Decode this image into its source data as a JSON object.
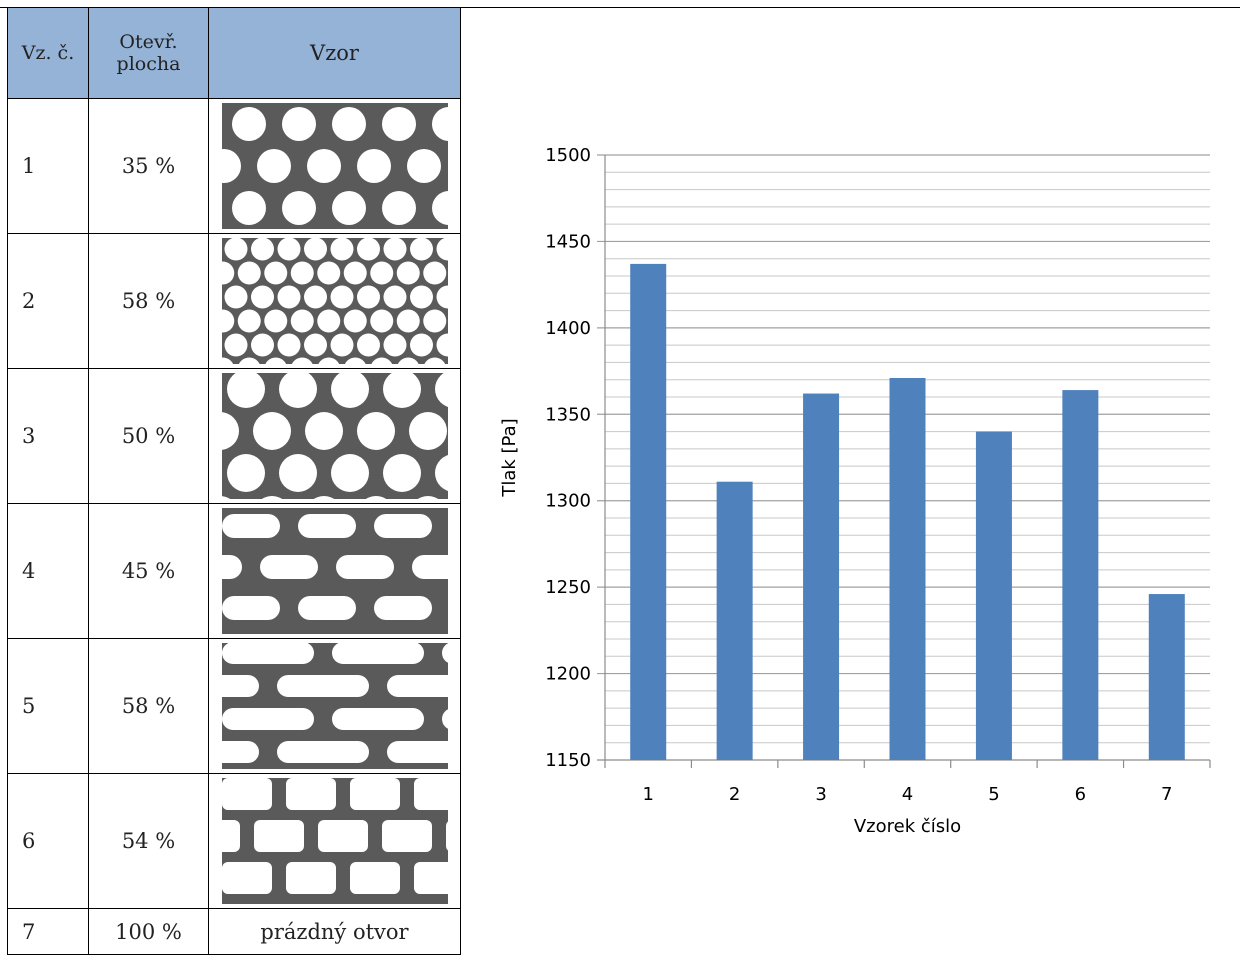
{
  "table": {
    "headers": {
      "number": "Vz. č.",
      "area_line1": "Otevř.",
      "area_line2": "plocha",
      "pattern": "Vzor"
    },
    "rows": [
      {
        "no": "1",
        "open_area": "35 %",
        "pattern": "round-holes-large"
      },
      {
        "no": "2",
        "open_area": "58 %",
        "pattern": "round-holes-small"
      },
      {
        "no": "3",
        "open_area": "50 %",
        "pattern": "round-holes-staggered"
      },
      {
        "no": "4",
        "open_area": "45 %",
        "pattern": "slots-short"
      },
      {
        "no": "5",
        "open_area": "58 %",
        "pattern": "slots-long"
      },
      {
        "no": "6",
        "open_area": "54 %",
        "pattern": "slots-barrel"
      },
      {
        "no": "7",
        "open_area": "100 %",
        "pattern_text": "prázdný otvor"
      }
    ]
  },
  "colors": {
    "header_bg": "#95b3d7",
    "bar": "#4f81bd",
    "pattern_metal": "#5a5a5a",
    "grid": "#a0a0a0"
  },
  "chart_data": {
    "type": "bar",
    "categories": [
      "1",
      "2",
      "3",
      "4",
      "5",
      "6",
      "7"
    ],
    "values": [
      1437,
      1311,
      1362,
      1371,
      1340,
      1364,
      1246
    ],
    "xlabel": "Vzorek číslo",
    "ylabel": "Tlak [Pa]",
    "ylim": [
      1150,
      1500
    ],
    "yticks": [
      1150,
      1200,
      1250,
      1300,
      1350,
      1400,
      1450,
      1500
    ],
    "major_gridlines": true,
    "minor_gridlines": true,
    "legend": "none"
  }
}
